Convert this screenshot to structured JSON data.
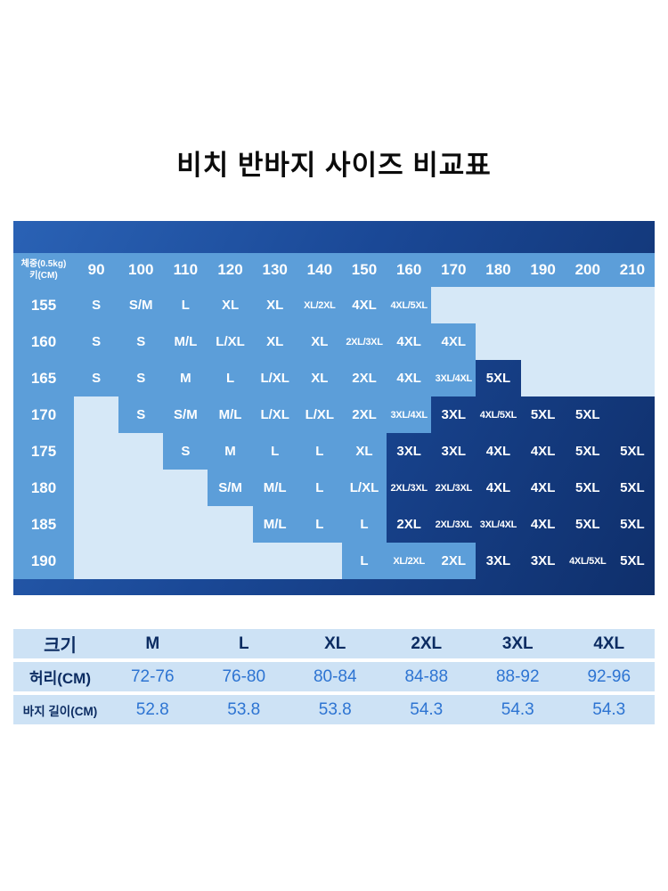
{
  "title": "비치 반바지 사이즈 비교표",
  "colors": {
    "title_color": "#0b0b0b",
    "tile_medium": "#5c9ed9",
    "tile_light": "#d6e8f7",
    "table_navy_start": "#2a62b5",
    "table_navy_end": "#0f2f6b",
    "cell_text": "#ffffff",
    "spec_bg": "#cde2f5",
    "spec_label": "#0c2c62",
    "spec_value": "#2d74d2"
  },
  "chart_data": [
    {
      "type": "table",
      "name": "size_matrix",
      "title": "비치 반바지 사이즈 비교표",
      "corner_label": "체중(0.5kg) 키(CM)",
      "row_axis": "키(CM)",
      "col_axis": "체중(0.5kg)",
      "columns": [
        "90",
        "100",
        "110",
        "120",
        "130",
        "140",
        "150",
        "160",
        "170",
        "180",
        "190",
        "200",
        "210"
      ],
      "rows": [
        {
          "height": "155",
          "cells": [
            [
              "S",
              "m"
            ],
            [
              "S/M",
              "m"
            ],
            [
              "L",
              "m"
            ],
            [
              "XL",
              "m"
            ],
            [
              "XL",
              "m"
            ],
            [
              "XL/2XL",
              "m"
            ],
            [
              "4XL",
              "m"
            ],
            [
              "4XL/5XL",
              "m"
            ],
            [
              "",
              "l"
            ],
            [
              "",
              "l"
            ],
            [
              "",
              "l"
            ],
            [
              "",
              "l"
            ],
            [
              "",
              "l"
            ]
          ]
        },
        {
          "height": "160",
          "cells": [
            [
              "S",
              "m"
            ],
            [
              "S",
              "m"
            ],
            [
              "M/L",
              "m"
            ],
            [
              "L/XL",
              "m"
            ],
            [
              "XL",
              "m"
            ],
            [
              "XL",
              "m"
            ],
            [
              "2XL/3XL",
              "m"
            ],
            [
              "4XL",
              "m"
            ],
            [
              "4XL",
              "m"
            ],
            [
              "",
              "l"
            ],
            [
              "",
              "l"
            ],
            [
              "",
              "l"
            ],
            [
              "",
              "l"
            ]
          ]
        },
        {
          "height": "165",
          "cells": [
            [
              "S",
              "m"
            ],
            [
              "S",
              "m"
            ],
            [
              "M",
              "m"
            ],
            [
              "L",
              "m"
            ],
            [
              "L/XL",
              "m"
            ],
            [
              "XL",
              "m"
            ],
            [
              "2XL",
              "m"
            ],
            [
              "4XL",
              "m"
            ],
            [
              "3XL/4XL",
              "m"
            ],
            [
              "5XL",
              "d"
            ],
            [
              "",
              "l"
            ],
            [
              "",
              "l"
            ],
            [
              "",
              "l"
            ]
          ]
        },
        {
          "height": "170",
          "cells": [
            [
              "",
              "l"
            ],
            [
              "S",
              "m"
            ],
            [
              "S/M",
              "m"
            ],
            [
              "M/L",
              "m"
            ],
            [
              "L/XL",
              "m"
            ],
            [
              "L/XL",
              "m"
            ],
            [
              "2XL",
              "m"
            ],
            [
              "3XL/4XL",
              "m"
            ],
            [
              "3XL",
              "d"
            ],
            [
              "4XL/5XL",
              "d"
            ],
            [
              "5XL",
              "d"
            ],
            [
              "5XL",
              "d"
            ],
            [
              "",
              "e"
            ]
          ]
        },
        {
          "height": "175",
          "cells": [
            [
              "",
              "l"
            ],
            [
              "",
              "l"
            ],
            [
              "S",
              "m"
            ],
            [
              "M",
              "m"
            ],
            [
              "L",
              "m"
            ],
            [
              "L",
              "m"
            ],
            [
              "XL",
              "m"
            ],
            [
              "3XL",
              "d"
            ],
            [
              "3XL",
              "d"
            ],
            [
              "4XL",
              "d"
            ],
            [
              "4XL",
              "d"
            ],
            [
              "5XL",
              "d"
            ],
            [
              "5XL",
              "d"
            ]
          ]
        },
        {
          "height": "180",
          "cells": [
            [
              "",
              "l"
            ],
            [
              "",
              "l"
            ],
            [
              "",
              "l"
            ],
            [
              "S/M",
              "m"
            ],
            [
              "M/L",
              "m"
            ],
            [
              "L",
              "m"
            ],
            [
              "L/XL",
              "m"
            ],
            [
              "2XL/3XL",
              "d"
            ],
            [
              "2XL/3XL",
              "d"
            ],
            [
              "4XL",
              "d"
            ],
            [
              "4XL",
              "d"
            ],
            [
              "5XL",
              "d"
            ],
            [
              "5XL",
              "d"
            ]
          ]
        },
        {
          "height": "185",
          "cells": [
            [
              "",
              "l"
            ],
            [
              "",
              "l"
            ],
            [
              "",
              "l"
            ],
            [
              "",
              "l"
            ],
            [
              "M/L",
              "m"
            ],
            [
              "L",
              "m"
            ],
            [
              "L",
              "m"
            ],
            [
              "2XL",
              "d"
            ],
            [
              "2XL/3XL",
              "d"
            ],
            [
              "3XL/4XL",
              "d"
            ],
            [
              "4XL",
              "d"
            ],
            [
              "5XL",
              "d"
            ],
            [
              "5XL",
              "d"
            ]
          ]
        },
        {
          "height": "190",
          "cells": [
            [
              "",
              "l"
            ],
            [
              "",
              "l"
            ],
            [
              "",
              "l"
            ],
            [
              "",
              "l"
            ],
            [
              "",
              "l"
            ],
            [
              "",
              "l"
            ],
            [
              "L",
              "m"
            ],
            [
              "XL/2XL",
              "m"
            ],
            [
              "2XL",
              "m"
            ],
            [
              "3XL",
              "d"
            ],
            [
              "3XL",
              "d"
            ],
            [
              "4XL/5XL",
              "d"
            ],
            [
              "5XL",
              "d"
            ]
          ]
        }
      ]
    },
    {
      "type": "table",
      "name": "spec_table",
      "rows": [
        {
          "label": "크기",
          "cls": "size",
          "values": [
            "M",
            "L",
            "XL",
            "2XL",
            "3XL",
            "4XL"
          ]
        },
        {
          "label": "허리(CM)",
          "cls": "num",
          "values": [
            "72-76",
            "76-80",
            "80-84",
            "84-88",
            "88-92",
            "92-96"
          ]
        },
        {
          "label": "바지 길이(CM)",
          "cls": "num",
          "values": [
            "52.8",
            "53.8",
            "53.8",
            "54.3",
            "54.3",
            "54.3"
          ]
        }
      ]
    }
  ]
}
